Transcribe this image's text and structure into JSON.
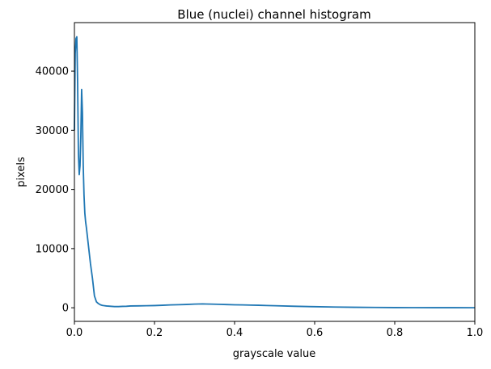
{
  "chart_data": {
    "type": "line",
    "title": "Blue (nuclei) channel histogram",
    "xlabel": "grayscale value",
    "ylabel": "pixels",
    "xlim": [
      0.0,
      1.0
    ],
    "ylim": [
      -2300,
      48200
    ],
    "x_ticks": [
      0.0,
      0.2,
      0.4,
      0.6,
      0.8,
      1.0
    ],
    "x_tick_labels": [
      "0.0",
      "0.2",
      "0.4",
      "0.6",
      "0.8",
      "1.0"
    ],
    "y_ticks": [
      0,
      10000,
      20000,
      30000,
      40000
    ],
    "y_tick_labels": [
      "0",
      "10000",
      "20000",
      "30000",
      "40000"
    ],
    "grid": false,
    "series": [
      {
        "color": "#1f77b4",
        "x": [
          0.0,
          0.002,
          0.004,
          0.006,
          0.008,
          0.01,
          0.012,
          0.014,
          0.016,
          0.018,
          0.02,
          0.022,
          0.024,
          0.026,
          0.028,
          0.03,
          0.035,
          0.04,
          0.045,
          0.05,
          0.055,
          0.06,
          0.065,
          0.07,
          0.075,
          0.08,
          0.09,
          0.1,
          0.11,
          0.12,
          0.13,
          0.14,
          0.16,
          0.18,
          0.2,
          0.22,
          0.24,
          0.26,
          0.28,
          0.3,
          0.32,
          0.34,
          0.36,
          0.38,
          0.4,
          0.42,
          0.44,
          0.46,
          0.48,
          0.5,
          0.55,
          0.6,
          0.65,
          0.7,
          0.75,
          0.8,
          0.85,
          0.9,
          0.95,
          1.0
        ],
        "y": [
          30000,
          43000,
          45500,
          45800,
          38000,
          26000,
          22500,
          24000,
          29000,
          36900,
          33000,
          24000,
          19000,
          16000,
          14500,
          13500,
          10500,
          7500,
          5000,
          2000,
          1000,
          700,
          500,
          400,
          350,
          300,
          250,
          200,
          200,
          230,
          250,
          300,
          320,
          340,
          370,
          420,
          480,
          520,
          560,
          620,
          650,
          620,
          580,
          540,
          500,
          480,
          450,
          420,
          380,
          340,
          250,
          180,
          120,
          80,
          50,
          30,
          20,
          15,
          10,
          5
        ]
      }
    ]
  }
}
